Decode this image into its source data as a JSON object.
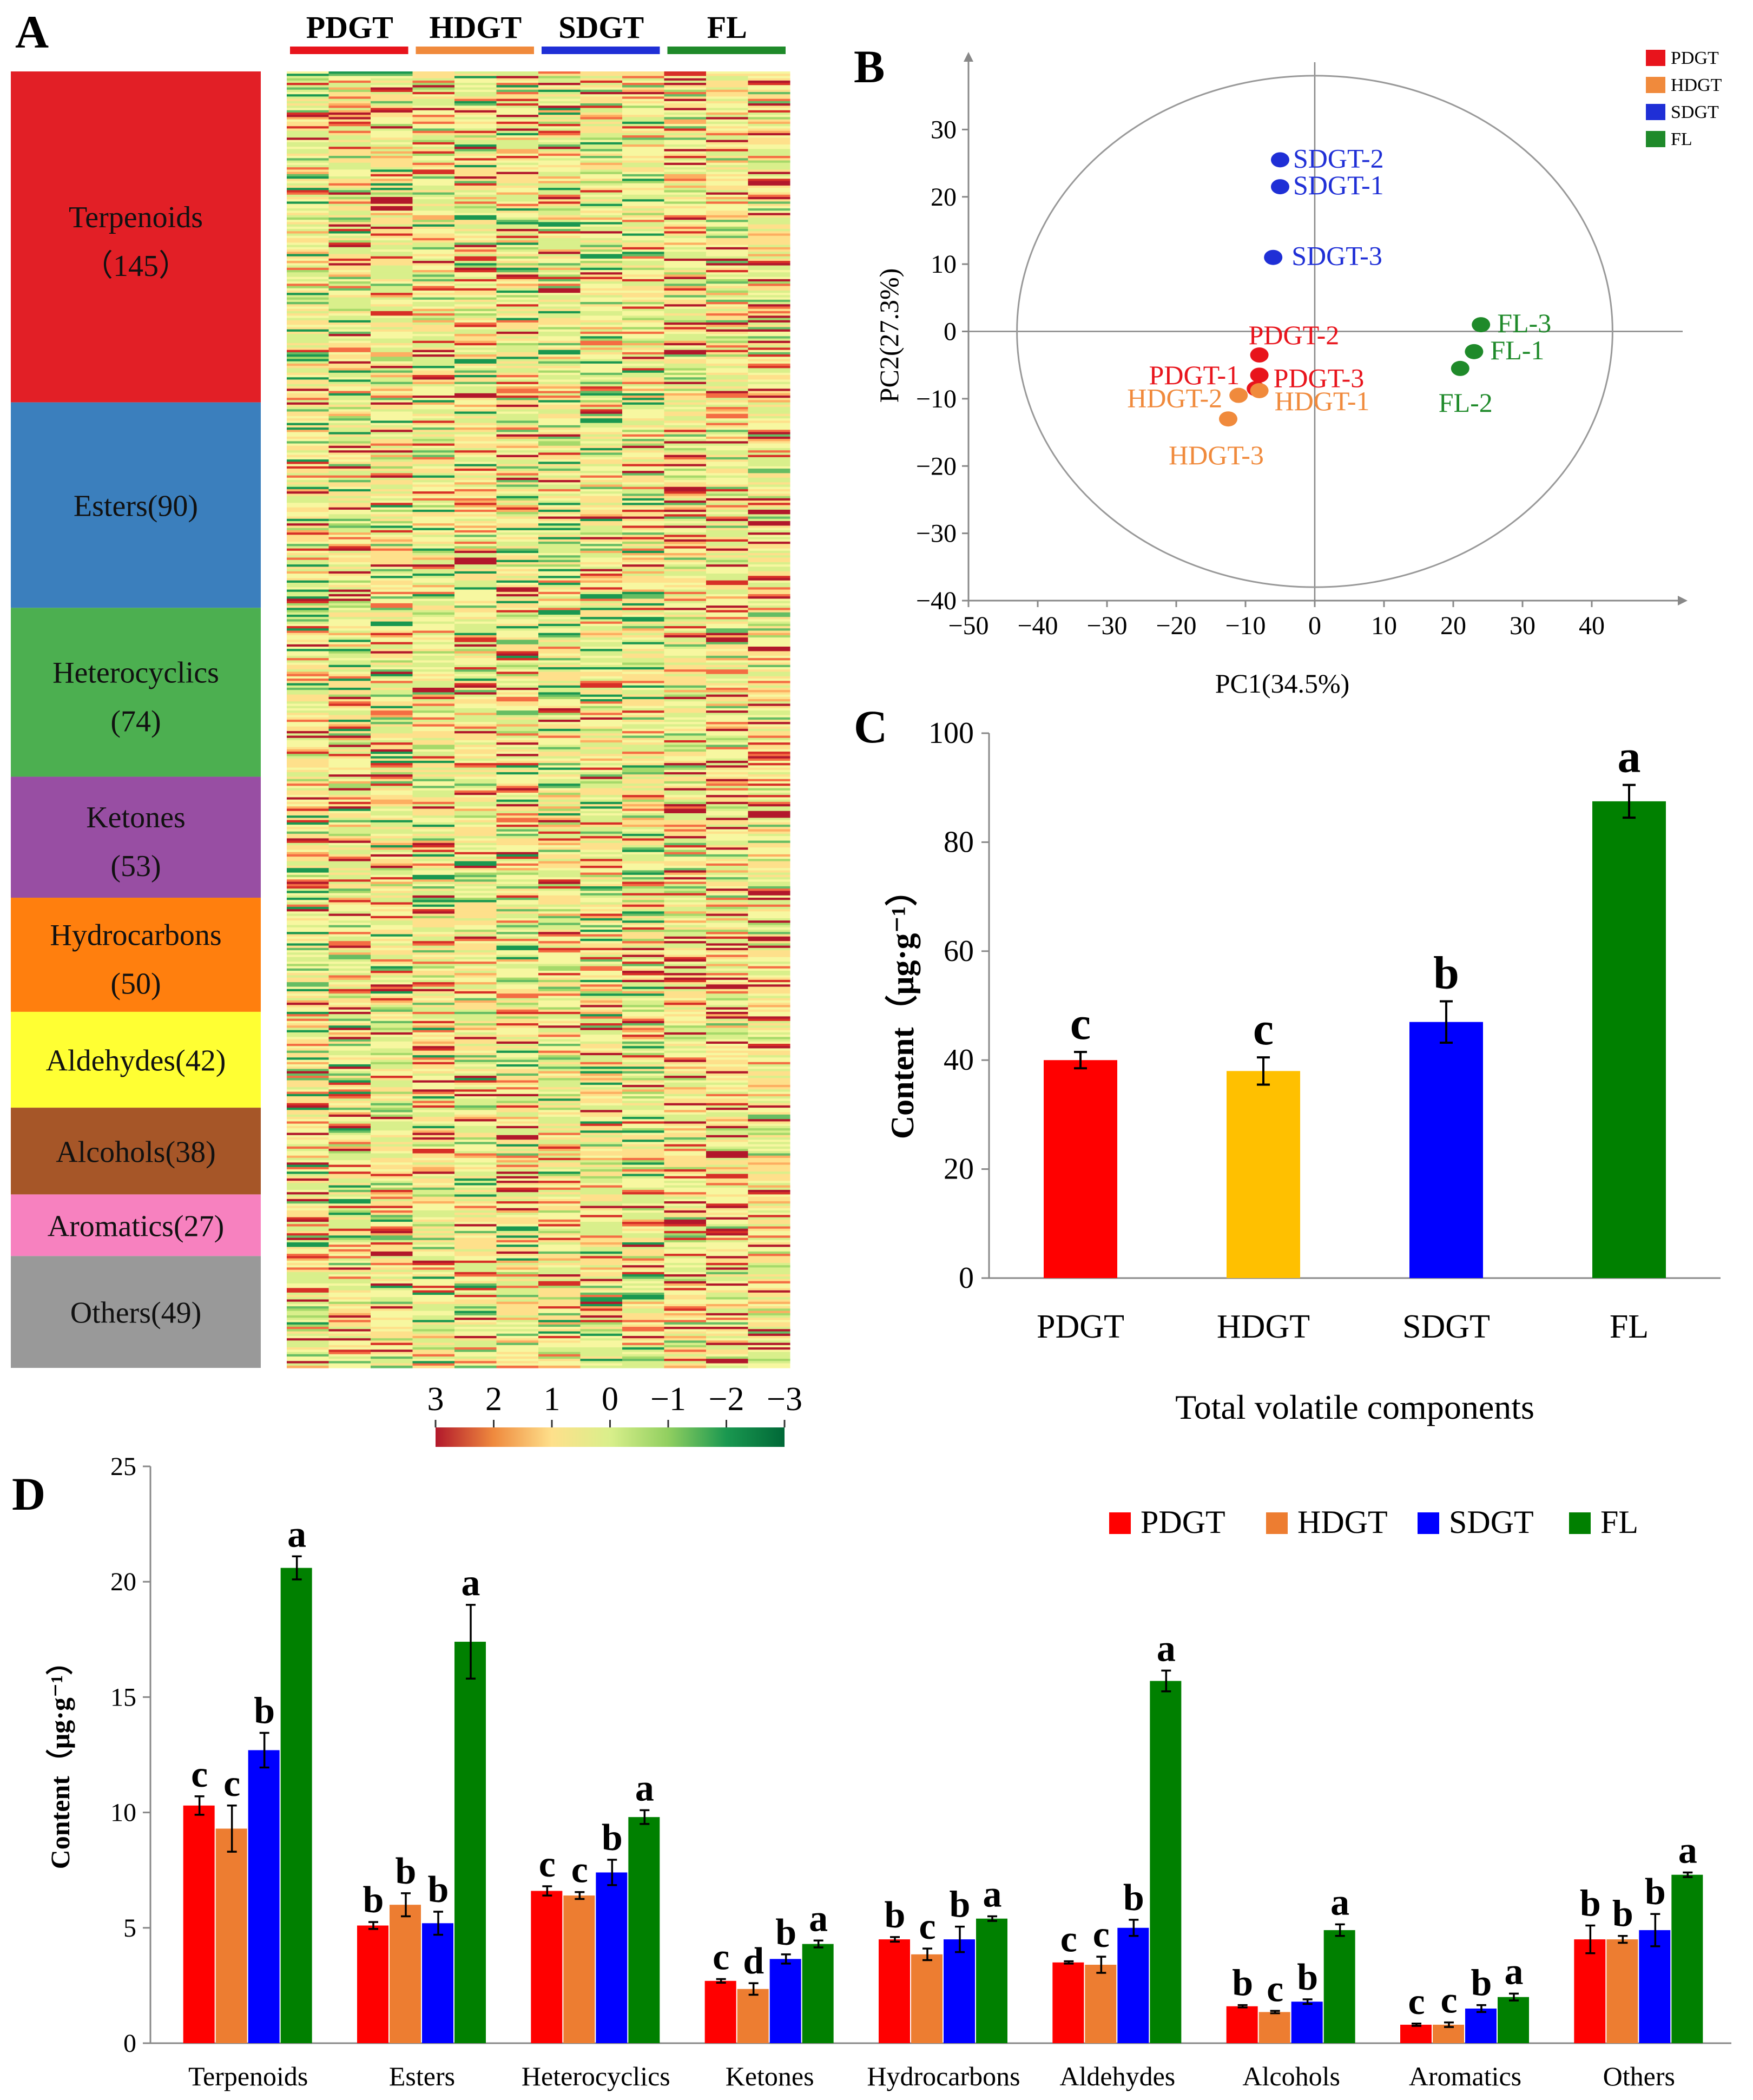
{
  "panels": {
    "A": {
      "letter": "A",
      "groups": [
        {
          "name": "PDGT",
          "color": "#e8141c"
        },
        {
          "name": "HDGT",
          "color": "#f08a3c"
        },
        {
          "name": "SDGT",
          "color": "#1f2fd6"
        },
        {
          "name": "FL",
          "color": "#1f8a2a"
        }
      ],
      "categories": [
        {
          "name": "Terpenoids",
          "count": "（145）",
          "n": 145,
          "color": "#e21f26",
          "inline": false
        },
        {
          "name": "Esters",
          "count": "(90)",
          "n": 90,
          "color": "#3b7fbd",
          "inline": true
        },
        {
          "name": "Heterocyclics",
          "count": "(74)",
          "n": 74,
          "color": "#4caf50",
          "inline": false
        },
        {
          "name": "Ketones",
          "count": "(53)",
          "n": 53,
          "color": "#984ea3",
          "inline": false
        },
        {
          "name": "Hydrocarbons",
          "count": "(50)",
          "n": 50,
          "color": "#ff7f0e",
          "inline": false
        },
        {
          "name": "Aldehydes",
          "count": "(42)",
          "n": 42,
          "color": "#ffff33",
          "inline": true
        },
        {
          "name": "Alcohols",
          "count": "(38)",
          "n": 38,
          "color": "#a65628",
          "inline": true
        },
        {
          "name": "Aromatics",
          "count": "(27)",
          "n": 27,
          "color": "#f781bf",
          "inline": true
        },
        {
          "name": "Others",
          "count": "(49)",
          "n": 49,
          "color": "#999999",
          "inline": true
        }
      ],
      "scale": {
        "ticks": [
          "3",
          "2",
          "1",
          "0",
          "−1",
          "−2",
          "−3"
        ],
        "colors": [
          "#b2182b",
          "#ef8a3e",
          "#fee08b",
          "#d9ef8b",
          "#91cf60",
          "#1a9850",
          "#006837"
        ]
      }
    }
  },
  "chart_data": [
    {
      "panel": "B",
      "type": "scatter",
      "title": "",
      "xlabel": "PC1(34.5%)",
      "ylabel": "PC2(27.3%)",
      "xlim": [
        -50,
        50
      ],
      "ylim": [
        -40,
        40
      ],
      "xticks": [
        -50,
        -40,
        -30,
        -20,
        -10,
        0,
        10,
        20,
        30,
        40
      ],
      "yticks": [
        -40,
        -30,
        -20,
        -10,
        0,
        10,
        20,
        30
      ],
      "tick_labels_x": [
        "−50",
        "−40",
        "−30",
        "−20",
        "−10",
        "0",
        "10",
        "20",
        "30",
        "40"
      ],
      "tick_labels_y": [
        "−40",
        "−30",
        "−20",
        "−10",
        "0",
        "10",
        "20",
        "30"
      ],
      "ellipse": {
        "rx": 43,
        "ry": 38
      },
      "legend": [
        {
          "name": "PDGT",
          "color": "#e8141c"
        },
        {
          "name": "HDGT",
          "color": "#f08a3c"
        },
        {
          "name": "SDGT",
          "color": "#1f2fd6"
        },
        {
          "name": "FL",
          "color": "#1f8a2a"
        }
      ],
      "points": [
        {
          "label": "SDGT-2",
          "group": "SDGT",
          "x": -5,
          "y": 25.5
        },
        {
          "label": "SDGT-1",
          "group": "SDGT",
          "x": -5,
          "y": 21.5
        },
        {
          "label": "SDGT-3",
          "group": "SDGT",
          "x": -6,
          "y": 11
        },
        {
          "label": "FL-3",
          "group": "FL",
          "x": 24,
          "y": 1
        },
        {
          "label": "FL-1",
          "group": "FL",
          "x": 23,
          "y": -3
        },
        {
          "label": "FL-2",
          "group": "FL",
          "x": 21,
          "y": -5.5
        },
        {
          "label": "PDGT-2",
          "group": "PDGT",
          "x": -8,
          "y": -3.5
        },
        {
          "label": "PDGT-3",
          "group": "PDGT",
          "x": -8,
          "y": -6.5
        },
        {
          "label": "PDGT-1",
          "group": "PDGT",
          "x": -8.5,
          "y": -8.5
        },
        {
          "label": "HDGT-1",
          "group": "HDGT",
          "x": -8,
          "y": -8.8
        },
        {
          "label": "HDGT-2",
          "group": "HDGT",
          "x": -11,
          "y": -9.5
        },
        {
          "label": "HDGT-3",
          "group": "HDGT",
          "x": -12.5,
          "y": -13
        }
      ]
    },
    {
      "panel": "C",
      "type": "bar",
      "title": "",
      "xlabel": "Total volatile components",
      "ylabel": "Content（μg·g⁻¹）",
      "ylim": [
        0,
        100
      ],
      "yticks": [
        0,
        20,
        40,
        60,
        80,
        100
      ],
      "categories": [
        "PDGT",
        "HDGT",
        "SDGT",
        "FL"
      ],
      "values": [
        40,
        38,
        47,
        87.5
      ],
      "errors": [
        1.5,
        2.5,
        3.8,
        3.0
      ],
      "letters": [
        "c",
        "c",
        "b",
        "a"
      ],
      "colors": [
        "#ff0000",
        "#ffc000",
        "#0000ff",
        "#008000"
      ]
    },
    {
      "panel": "D",
      "type": "bar",
      "title": "",
      "xlabel": "",
      "ylabel": "Content（μg·g⁻¹）",
      "ylim": [
        0,
        25
      ],
      "yticks": [
        0,
        5,
        10,
        15,
        20,
        25
      ],
      "legend_position": "top-right",
      "categories": [
        "Terpenoids",
        "Esters",
        "Heterocyclics",
        "Ketones",
        "Hydrocarbons",
        "Aldehydes",
        "Alcohols",
        "Aromatics",
        "Others"
      ],
      "series": [
        {
          "name": "PDGT",
          "color": "#ff0000",
          "values": [
            10.3,
            5.1,
            6.6,
            2.7,
            4.5,
            3.5,
            1.6,
            0.8,
            4.5
          ],
          "errors": [
            0.4,
            0.15,
            0.2,
            0.08,
            0.1,
            0.05,
            0.05,
            0.05,
            0.6
          ],
          "letters": [
            "c",
            "b",
            "c",
            "c",
            "b",
            "c",
            "b",
            "c",
            "b"
          ]
        },
        {
          "name": "HDGT",
          "color": "#ed7d31",
          "values": [
            9.3,
            6.0,
            6.4,
            2.35,
            3.85,
            3.4,
            1.35,
            0.8,
            4.5
          ],
          "errors": [
            1.0,
            0.5,
            0.15,
            0.25,
            0.25,
            0.35,
            0.05,
            0.1,
            0.15
          ],
          "letters": [
            "c",
            "b",
            "c",
            "d",
            "c",
            "c",
            "c",
            "c",
            "b"
          ]
        },
        {
          "name": "SDGT",
          "color": "#0000ff",
          "values": [
            12.7,
            5.2,
            7.4,
            3.65,
            4.5,
            5.0,
            1.8,
            1.5,
            4.9
          ],
          "errors": [
            0.75,
            0.5,
            0.55,
            0.2,
            0.55,
            0.35,
            0.1,
            0.15,
            0.7
          ],
          "letters": [
            "b",
            "b",
            "b",
            "b",
            "b",
            "b",
            "b",
            "b",
            "b"
          ]
        },
        {
          "name": "FL",
          "color": "#008000",
          "values": [
            20.6,
            17.4,
            9.8,
            4.3,
            5.4,
            15.7,
            4.9,
            2.0,
            7.3
          ],
          "errors": [
            0.5,
            1.6,
            0.3,
            0.15,
            0.1,
            0.45,
            0.25,
            0.15,
            0.1
          ],
          "letters": [
            "a",
            "a",
            "a",
            "a",
            "a",
            "a",
            "a",
            "a",
            "a"
          ]
        }
      ]
    }
  ]
}
